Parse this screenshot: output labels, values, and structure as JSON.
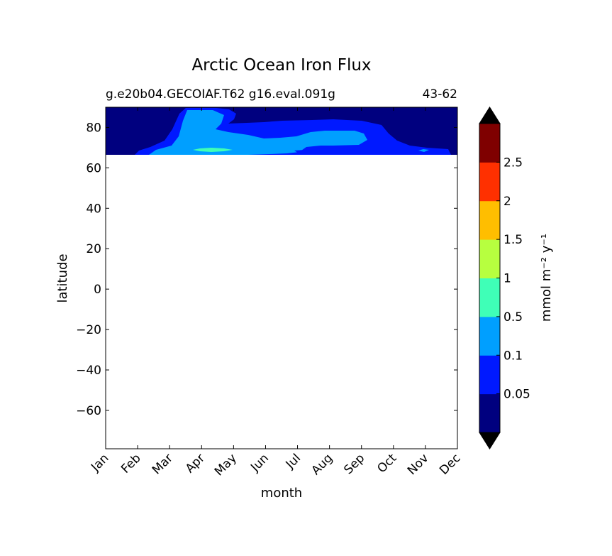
{
  "chart_data": {
    "type": "heatmap",
    "title": "Arctic Ocean Iron Flux",
    "subtitle_left": "g.e20b04.GECOIAF.T62 g16.eval.091g",
    "subtitle_right": "43-62",
    "xlabel": "month",
    "ylabel": "latitude",
    "x_ticks": [
      "Jan",
      "Feb",
      "Mar",
      "Apr",
      "May",
      "Jun",
      "Jul",
      "Aug",
      "Sep",
      "Oct",
      "Nov",
      "Dec"
    ],
    "xlim": [
      1,
      12
    ],
    "ylim": [
      -79,
      90
    ],
    "y_ticks": [
      80,
      60,
      40,
      20,
      0,
      -20,
      -40,
      -60
    ],
    "y_tick_labels": [
      "80",
      "60",
      "40",
      "20",
      "0",
      "−20",
      "−40",
      "−60"
    ],
    "data_lat_range": [
      66,
      90
    ],
    "colorbar": {
      "label": "mmol m⁻² y⁻¹",
      "tick_labels": [
        "0.05",
        "0.1",
        "0.5",
        "1",
        "1.5",
        "2",
        "2.5"
      ],
      "levels": [
        0.05,
        0.1,
        0.5,
        1,
        1.5,
        2,
        2.5
      ],
      "colors": [
        "#00007f",
        "#0019ff",
        "#009fff",
        "#3fffb7",
        "#b7ff3f",
        "#ffbe00",
        "#ff3000",
        "#7f0000"
      ],
      "under_color": "#000000",
      "over_color": "#000000",
      "extend": "both"
    },
    "contour_regions": [
      {
        "level": 0,
        "color": "#00007f",
        "description": "background"
      },
      {
        "level": 1,
        "color": "#0019ff"
      },
      {
        "level": 2,
        "color": "#009fff"
      },
      {
        "level": 3,
        "color": "#3fffb7"
      }
    ],
    "grid": false,
    "legend": "colorbar-right"
  }
}
